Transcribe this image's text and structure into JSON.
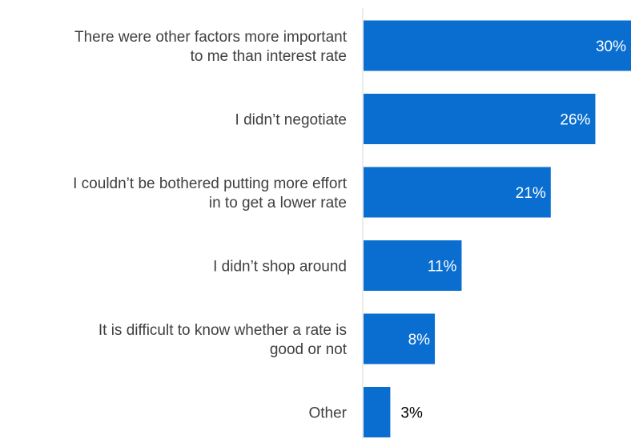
{
  "chart_data": {
    "type": "bar",
    "orientation": "horizontal",
    "categories": [
      [
        "There were other factors more important",
        "to me than interest rate"
      ],
      [
        "I didn’t negotiate"
      ],
      [
        "I couldn’t be bothered putting more effort",
        "in to get a lower rate"
      ],
      [
        "I didn’t shop around"
      ],
      [
        "It is difficult to know whether a rate is",
        "good or not"
      ],
      [
        "Other"
      ]
    ],
    "values": [
      30,
      26,
      21,
      11,
      8,
      3
    ],
    "value_labels": [
      "30%",
      "26%",
      "21%",
      "11%",
      "8%",
      "3%"
    ],
    "xlim": [
      0,
      30
    ],
    "grid": false,
    "legend": "none",
    "colors": {
      "bar": "#0A6ED1",
      "axis": "#D9D9D9",
      "label_text": "#404040",
      "inside_value": "#FFFFFF",
      "outside_value": "#000000"
    }
  }
}
